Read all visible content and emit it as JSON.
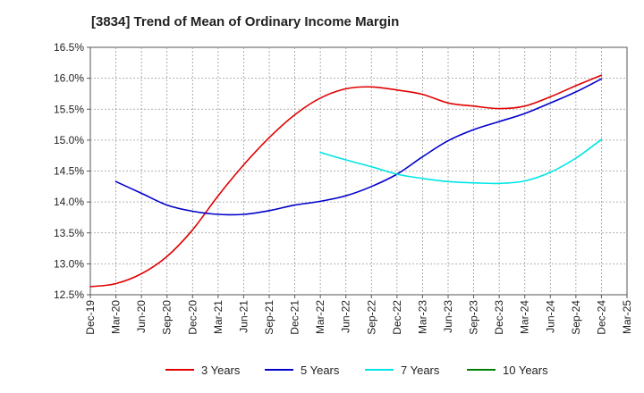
{
  "chart_data": {
    "type": "line",
    "title": "[3834]  Trend of Mean of Ordinary Income Margin",
    "x": [
      "Dec-19",
      "Mar-20",
      "Jun-20",
      "Sep-20",
      "Dec-20",
      "Mar-21",
      "Jun-21",
      "Sep-21",
      "Dec-21",
      "Mar-22",
      "Jun-22",
      "Sep-22",
      "Dec-22",
      "Mar-23",
      "Jun-23",
      "Sep-23",
      "Dec-23",
      "Mar-24",
      "Jun-24",
      "Sep-24",
      "Dec-24",
      "Mar-25"
    ],
    "y_ticks": [
      "12.5%",
      "13.0%",
      "13.5%",
      "14.0%",
      "14.5%",
      "15.0%",
      "15.5%",
      "16.0%",
      "16.5%"
    ],
    "ylim": [
      12.5,
      16.5
    ],
    "grid": true,
    "legend_position": "bottom",
    "series": [
      {
        "name": "3 Years",
        "color": "#e00000",
        "values": [
          12.63,
          12.68,
          12.84,
          13.12,
          13.55,
          14.1,
          14.6,
          15.04,
          15.41,
          15.68,
          15.83,
          15.86,
          15.81,
          15.74,
          15.6,
          15.55,
          15.51,
          15.55,
          15.7,
          15.88,
          16.05,
          null
        ]
      },
      {
        "name": "5 Years",
        "color": "#0000cc",
        "values": [
          null,
          14.33,
          14.14,
          13.95,
          13.85,
          13.8,
          13.8,
          13.86,
          13.95,
          14.01,
          14.1,
          14.25,
          14.45,
          14.73,
          14.99,
          15.17,
          15.3,
          15.43,
          15.6,
          15.78,
          15.99,
          null
        ]
      },
      {
        "name": "7 Years",
        "color": "#00e5e5",
        "values": [
          null,
          null,
          null,
          null,
          null,
          null,
          null,
          null,
          null,
          14.8,
          14.68,
          14.57,
          14.45,
          14.38,
          14.33,
          14.31,
          14.3,
          14.34,
          14.48,
          14.71,
          15.01,
          null
        ]
      },
      {
        "name": "10 Years",
        "color": "#008000",
        "values": [
          null,
          null,
          null,
          null,
          null,
          null,
          null,
          null,
          null,
          null,
          null,
          null,
          null,
          null,
          null,
          null,
          null,
          null,
          null,
          null,
          null,
          null
        ]
      }
    ]
  }
}
